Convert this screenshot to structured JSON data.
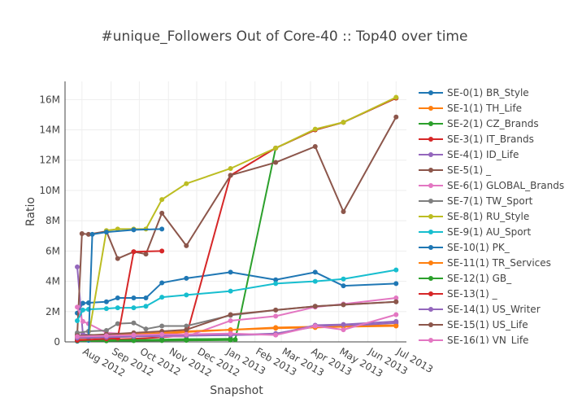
{
  "chart_data": {
    "type": "line",
    "title": "#unique_Followers Out of Core-40 :: Top40 over time",
    "xlabel": "Snapshot",
    "ylabel": "Ratio",
    "ylim": [
      0,
      17200000
    ],
    "xlim": [
      "2012-07-14",
      "2013-07-12"
    ],
    "grid": true,
    "legend_placement": "right",
    "x_ticks": [
      {
        "date": "2012-08-01",
        "label": "Aug 2012"
      },
      {
        "date": "2012-09-01",
        "label": "Sep 2012"
      },
      {
        "date": "2012-10-01",
        "label": "Oct 2012"
      },
      {
        "date": "2012-11-01",
        "label": "Nov 2012"
      },
      {
        "date": "2012-12-01",
        "label": "Dec 2012"
      },
      {
        "date": "2013-01-01",
        "label": "Jan 2013"
      },
      {
        "date": "2013-02-01",
        "label": "Feb 2013"
      },
      {
        "date": "2013-03-01",
        "label": "Mar 2013"
      },
      {
        "date": "2013-04-01",
        "label": "Apr 2013"
      },
      {
        "date": "2013-05-01",
        "label": "May 2013"
      },
      {
        "date": "2013-06-01",
        "label": "Jun 2013"
      },
      {
        "date": "2013-07-01",
        "label": "Jul 2013"
      }
    ],
    "y_ticks": [
      {
        "value": 0,
        "label": "0"
      },
      {
        "value": 2000000,
        "label": "2M"
      },
      {
        "value": 4000000,
        "label": "4M"
      },
      {
        "value": 6000000,
        "label": "6M"
      },
      {
        "value": 8000000,
        "label": "8M"
      },
      {
        "value": 10000000,
        "label": "10M"
      },
      {
        "value": 12000000,
        "label": "12M"
      },
      {
        "value": 14000000,
        "label": "14M"
      },
      {
        "value": 16000000,
        "label": "16M"
      }
    ],
    "series": [
      {
        "name": "SE-0(1) BR_Style",
        "color": "#1f77b4",
        "x": [
          "2012-07-27",
          "2012-08-02",
          "2012-08-08",
          "2012-08-27",
          "2012-09-08",
          "2012-09-25",
          "2012-10-08",
          "2012-10-25",
          "2012-11-20",
          "2013-01-06",
          "2013-02-23",
          "2013-04-06",
          "2013-05-06",
          "2013-07-01"
        ],
        "y": [
          1900000,
          2550000,
          2580000,
          2650000,
          2900000,
          2900000,
          2900000,
          3900000,
          4200000,
          4600000,
          4100000,
          4600000,
          3700000,
          3850000
        ]
      },
      {
        "name": "SE-1(1) TH_Life",
        "color": "#ff7f0e",
        "x": [
          "2012-07-27",
          "2012-08-08",
          "2012-08-27",
          "2012-09-25",
          "2012-10-25",
          "2012-11-20",
          "2013-01-06",
          "2013-02-23",
          "2013-04-06",
          "2013-05-06",
          "2013-07-01"
        ],
        "y": [
          200000,
          250000,
          300000,
          350000,
          500000,
          650000,
          800000,
          950000,
          1000000,
          1050000,
          1100000
        ]
      },
      {
        "name": "SE-2(1) CZ_Brands",
        "color": "#2ca02c",
        "x": [
          "2012-07-27",
          "2012-08-27",
          "2012-09-25",
          "2012-10-25",
          "2012-11-20",
          "2013-01-06",
          "2013-01-11",
          "2013-02-23",
          "2013-04-06",
          "2013-05-06",
          "2013-07-01"
        ],
        "y": [
          50000,
          70000,
          80000,
          90000,
          100000,
          120000,
          150000,
          12800000,
          14000000,
          14500000,
          16100000
        ]
      },
      {
        "name": "SE-3(1) IT_Brands",
        "color": "#d62728",
        "x": [
          "2012-07-27",
          "2012-08-27",
          "2012-09-25",
          "2012-10-25",
          "2012-11-20",
          "2013-01-06",
          "2013-02-23",
          "2013-04-06",
          "2013-05-06",
          "2013-07-01"
        ],
        "y": [
          100000,
          150000,
          200000,
          300000,
          400000,
          11000000,
          12800000,
          14000000,
          14500000,
          16100000
        ]
      },
      {
        "name": "SE-4(1) ID_Life",
        "color": "#9467bd",
        "x": [
          "2012-07-27",
          "2012-08-02",
          "2012-08-27",
          "2012-09-25",
          "2012-10-25",
          "2012-11-20",
          "2013-01-06",
          "2013-02-23",
          "2013-04-06",
          "2013-05-06",
          "2013-07-01"
        ],
        "y": [
          4950000,
          500000,
          400000,
          400000,
          350000,
          400000,
          450000,
          550000,
          1000000,
          1050000,
          1250000
        ]
      },
      {
        "name": "SE-5(1) _",
        "color": "#8c564b",
        "x": [
          "2012-07-27",
          "2012-08-01",
          "2012-08-08",
          "2012-08-27",
          "2012-09-08",
          "2012-09-25",
          "2012-10-08",
          "2012-10-25",
          "2012-11-20",
          "2013-01-06",
          "2013-02-23",
          "2013-04-06",
          "2013-05-06",
          "2013-07-01"
        ],
        "y": [
          500000,
          7150000,
          7100000,
          7300000,
          5500000,
          5950000,
          5800000,
          8500000,
          6350000,
          11000000,
          11850000,
          12900000,
          8600000,
          14850000
        ]
      },
      {
        "name": "SE-6(1) GLOBAL_Brands",
        "color": "#e377c2",
        "x": [
          "2012-07-27",
          "2012-08-02",
          "2012-08-08",
          "2012-08-27",
          "2012-09-25",
          "2012-10-25",
          "2012-11-20",
          "2013-01-06",
          "2013-02-23",
          "2013-04-06",
          "2013-05-06",
          "2013-07-01"
        ],
        "y": [
          2300000,
          1350000,
          1200000,
          600000,
          500000,
          350000,
          350000,
          1400000,
          1700000,
          2300000,
          2500000,
          2900000
        ]
      },
      {
        "name": "SE-7(1) TW_Sport",
        "color": "#7f7f7f",
        "x": [
          "2012-07-27",
          "2012-08-08",
          "2012-08-27",
          "2012-09-08",
          "2012-09-25",
          "2012-10-08",
          "2012-10-25",
          "2012-11-20",
          "2013-01-06",
          "2013-02-23",
          "2013-04-06",
          "2013-05-06",
          "2013-07-01"
        ],
        "y": [
          600000,
          700000,
          750000,
          1200000,
          1250000,
          850000,
          1050000,
          1050000,
          1750000,
          2100000,
          2350000,
          2450000,
          2650000
        ]
      },
      {
        "name": "SE-8(1) RU_Style",
        "color": "#bcbd22",
        "x": [
          "2012-07-27",
          "2012-08-08",
          "2012-08-27",
          "2012-09-08",
          "2012-09-25",
          "2012-10-08",
          "2012-10-25",
          "2012-11-20",
          "2013-01-06",
          "2013-02-23",
          "2013-04-06",
          "2013-05-06",
          "2013-07-01"
        ],
        "y": [
          300000,
          350000,
          7350000,
          7450000,
          7450000,
          7450000,
          9400000,
          10450000,
          11450000,
          12800000,
          14050000,
          14500000,
          16150000
        ]
      },
      {
        "name": "SE-9(1) AU_Sport",
        "color": "#17becf",
        "x": [
          "2012-07-27",
          "2012-08-02",
          "2012-08-08",
          "2012-08-27",
          "2012-09-08",
          "2012-09-25",
          "2012-10-08",
          "2012-10-25",
          "2012-11-20",
          "2013-01-06",
          "2013-02-23",
          "2013-04-06",
          "2013-05-06",
          "2013-07-01"
        ],
        "y": [
          1400000,
          2100000,
          2150000,
          2200000,
          2250000,
          2250000,
          2350000,
          2950000,
          3100000,
          3350000,
          3850000,
          4000000,
          4150000,
          4750000
        ]
      },
      {
        "name": "SE-10(1) PK_",
        "color": "#1f77b4",
        "x": [
          "2012-07-27",
          "2012-08-08",
          "2012-08-12",
          "2012-08-27",
          "2012-09-25",
          "2012-10-25"
        ],
        "y": [
          50000,
          100000,
          7100000,
          7250000,
          7400000,
          7450000
        ]
      },
      {
        "name": "SE-11(1) TR_Services",
        "color": "#ff7f0e",
        "x": [
          "2012-07-27",
          "2012-08-27",
          "2012-09-25",
          "2012-10-25",
          "2012-11-20",
          "2013-01-06",
          "2013-02-23",
          "2013-04-06",
          "2013-05-06",
          "2013-07-01"
        ],
        "y": [
          300000,
          400000,
          500000,
          600000,
          700000,
          800000,
          900000,
          950000,
          1000000,
          1050000
        ]
      },
      {
        "name": "SE-12(1) GB_",
        "color": "#2ca02c",
        "x": [
          "2012-07-27",
          "2012-08-27",
          "2012-09-25",
          "2012-10-25",
          "2012-11-20",
          "2013-01-06"
        ],
        "y": [
          80000,
          100000,
          120000,
          150000,
          180000,
          200000
        ]
      },
      {
        "name": "SE-13(1) _",
        "color": "#d62728",
        "x": [
          "2012-07-27",
          "2012-08-27",
          "2012-09-08",
          "2012-09-25",
          "2012-10-25"
        ],
        "y": [
          100000,
          200000,
          250000,
          5950000,
          6000000
        ]
      },
      {
        "name": "SE-14(1) US_Writer",
        "color": "#9467bd",
        "x": [
          "2012-07-27",
          "2012-08-27",
          "2012-09-25",
          "2012-10-25",
          "2012-11-20",
          "2013-01-06",
          "2013-02-23",
          "2013-04-06",
          "2013-05-06",
          "2013-07-01"
        ],
        "y": [
          250000,
          300000,
          350000,
          400000,
          420000,
          450000,
          500000,
          1100000,
          1150000,
          1350000
        ]
      },
      {
        "name": "SE-15(1) US_Life",
        "color": "#8c564b",
        "x": [
          "2012-07-27",
          "2012-08-27",
          "2012-09-25",
          "2012-10-25",
          "2012-11-20",
          "2013-01-06",
          "2013-02-23",
          "2013-04-06",
          "2013-05-06",
          "2013-07-01"
        ],
        "y": [
          400000,
          500000,
          600000,
          700000,
          800000,
          1800000,
          2100000,
          2350000,
          2450000,
          2650000
        ]
      },
      {
        "name": "SE-16(1) VN_Life",
        "color": "#e377c2",
        "x": [
          "2012-07-27",
          "2012-08-27",
          "2012-09-25",
          "2012-10-25",
          "2012-11-20",
          "2013-01-06",
          "2013-02-23",
          "2013-04-06",
          "2013-05-06",
          "2013-07-01"
        ],
        "y": [
          350000,
          400000,
          450000,
          500000,
          500000,
          550000,
          450000,
          1050000,
          800000,
          1800000
        ]
      }
    ]
  }
}
